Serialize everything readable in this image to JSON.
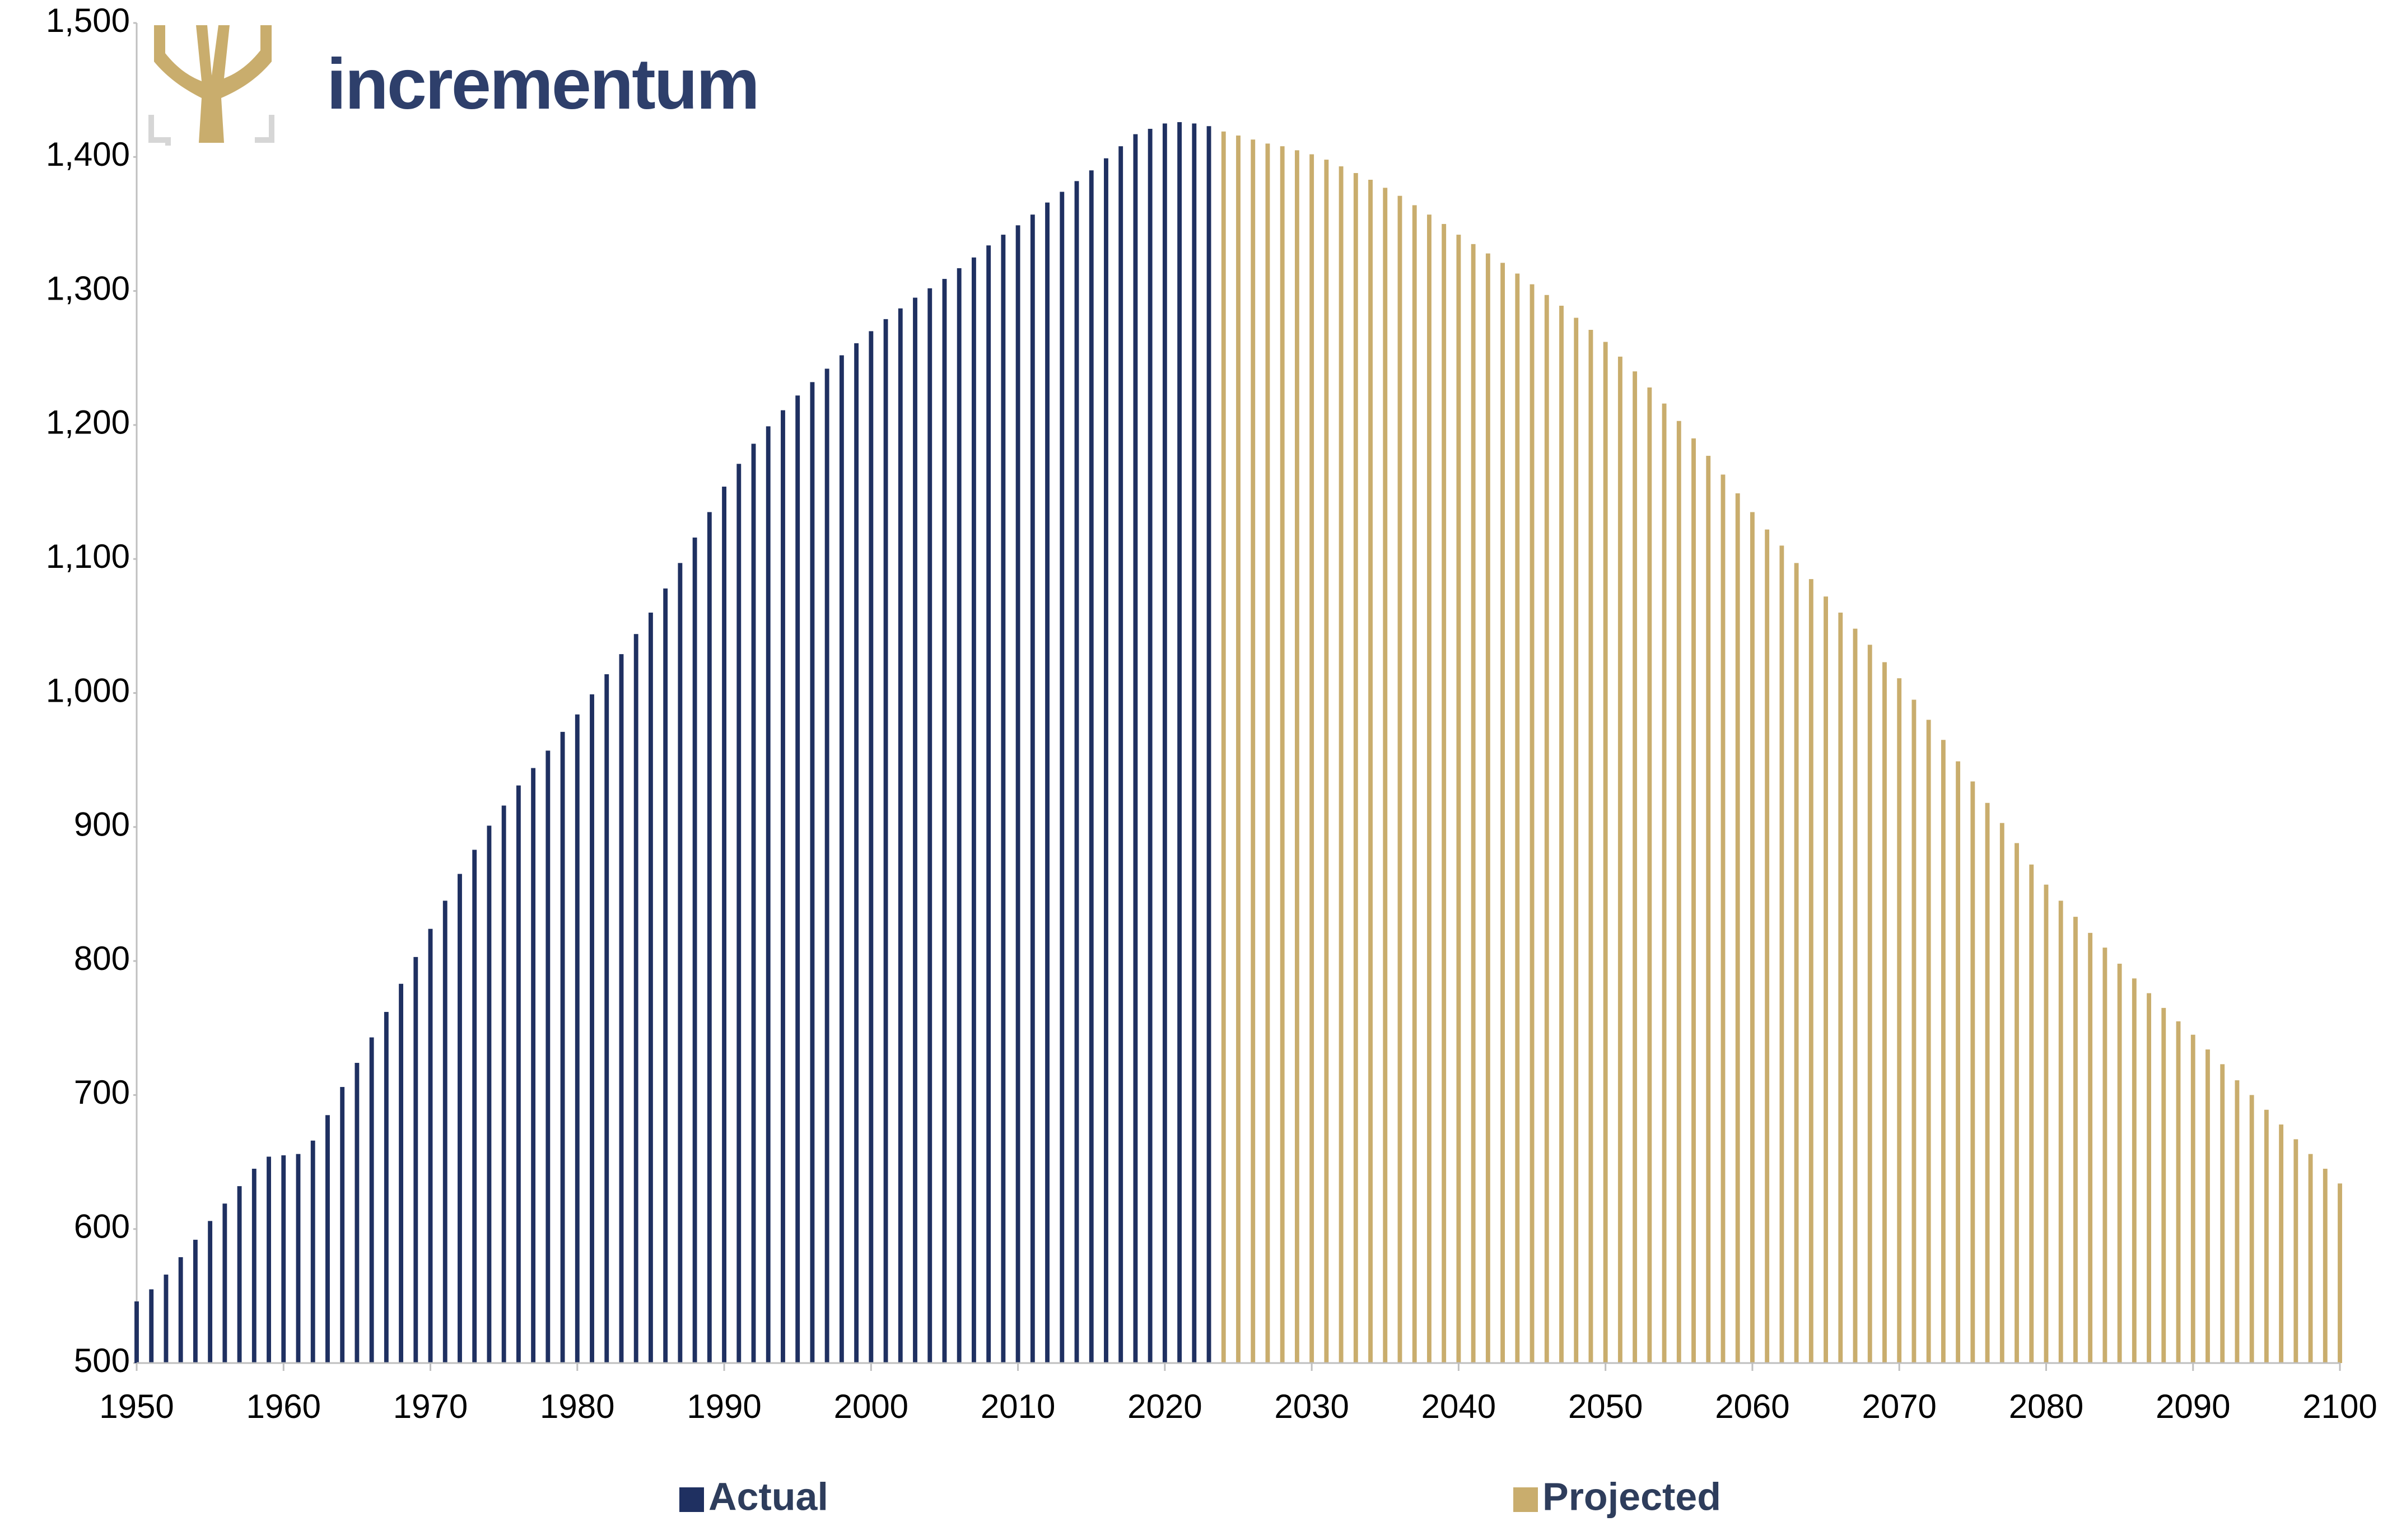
{
  "logo": {
    "text": "incrementum"
  },
  "chart_data": {
    "type": "bar",
    "xlim": [
      1950,
      2100
    ],
    "xticks": [
      1950,
      1960,
      1970,
      1980,
      1990,
      2000,
      2010,
      2020,
      2030,
      2040,
      2050,
      2060,
      2070,
      2080,
      2090,
      2100
    ],
    "ylim": [
      500,
      1500
    ],
    "yticks": [
      500,
      600,
      700,
      800,
      900,
      {
        "value": 1000,
        "label": "1,000"
      },
      {
        "value": 1100,
        "label": "1,100"
      },
      {
        "value": 1200,
        "label": "1,200"
      },
      {
        "value": 1300,
        "label": "1,300"
      },
      {
        "value": 1400,
        "label": "1,400"
      },
      {
        "value": 1500,
        "label": "1,500"
      }
    ],
    "grid": false,
    "legend": "bottom",
    "series": [
      {
        "name": "Actual",
        "color": "#1f3061",
        "x": [
          1950,
          1951,
          1952,
          1953,
          1954,
          1955,
          1956,
          1957,
          1958,
          1959,
          1960,
          1961,
          1962,
          1963,
          1964,
          1965,
          1966,
          1967,
          1968,
          1969,
          1970,
          1971,
          1972,
          1973,
          1974,
          1975,
          1976,
          1977,
          1978,
          1979,
          1980,
          1981,
          1982,
          1983,
          1984,
          1985,
          1986,
          1987,
          1988,
          1989,
          1990,
          1991,
          1992,
          1993,
          1994,
          1995,
          1996,
          1997,
          1998,
          1999,
          2000,
          2001,
          2002,
          2003,
          2004,
          2005,
          2006,
          2007,
          2008,
          2009,
          2010,
          2011,
          2012,
          2013,
          2014,
          2015,
          2016,
          2017,
          2018,
          2019,
          2020,
          2021,
          2022,
          2023
        ],
        "values": [
          546,
          555,
          566,
          579,
          592,
          606,
          619,
          632,
          645,
          654,
          655,
          656,
          666,
          685,
          706,
          724,
          743,
          762,
          783,
          803,
          824,
          845,
          865,
          883,
          901,
          916,
          931,
          944,
          957,
          971,
          984,
          999,
          1014,
          1029,
          1044,
          1060,
          1078,
          1097,
          1116,
          1135,
          1154,
          1171,
          1186,
          1199,
          1211,
          1222,
          1232,
          1242,
          1252,
          1261,
          1270,
          1279,
          1287,
          1295,
          1302,
          1309,
          1317,
          1325,
          1334,
          1342,
          1349,
          1357,
          1366,
          1374,
          1382,
          1390,
          1399,
          1408,
          1417,
          1421,
          1425,
          1426,
          1425,
          1423
        ]
      },
      {
        "name": "Projected",
        "color": "#c9ad6d",
        "x": [
          2024,
          2025,
          2026,
          2027,
          2028,
          2029,
          2030,
          2031,
          2032,
          2033,
          2034,
          2035,
          2036,
          2037,
          2038,
          2039,
          2040,
          2041,
          2042,
          2043,
          2044,
          2045,
          2046,
          2047,
          2048,
          2049,
          2050,
          2051,
          2052,
          2053,
          2054,
          2055,
          2056,
          2057,
          2058,
          2059,
          2060,
          2061,
          2062,
          2063,
          2064,
          2065,
          2066,
          2067,
          2068,
          2069,
          2070,
          2071,
          2072,
          2073,
          2074,
          2075,
          2076,
          2077,
          2078,
          2079,
          2080,
          2081,
          2082,
          2083,
          2084,
          2085,
          2086,
          2087,
          2088,
          2089,
          2090,
          2091,
          2092,
          2093,
          2094,
          2095,
          2096,
          2097,
          2098,
          2099,
          2100
        ],
        "values": [
          1419,
          1416,
          1413,
          1410,
          1408,
          1405,
          1402,
          1398,
          1393,
          1388,
          1383,
          1377,
          1371,
          1364,
          1357,
          1350,
          1342,
          1335,
          1328,
          1321,
          1313,
          1305,
          1297,
          1289,
          1280,
          1271,
          1262,
          1251,
          1240,
          1228,
          1216,
          1203,
          1190,
          1177,
          1163,
          1149,
          1135,
          1122,
          1110,
          1097,
          1085,
          1072,
          1060,
          1048,
          1036,
          1023,
          1011,
          995,
          980,
          965,
          949,
          934,
          918,
          903,
          888,
          872,
          857,
          845,
          833,
          821,
          810,
          798,
          787,
          776,
          765,
          755,
          745,
          734,
          723,
          711,
          700,
          689,
          678,
          667,
          656,
          645,
          634
        ]
      }
    ]
  }
}
